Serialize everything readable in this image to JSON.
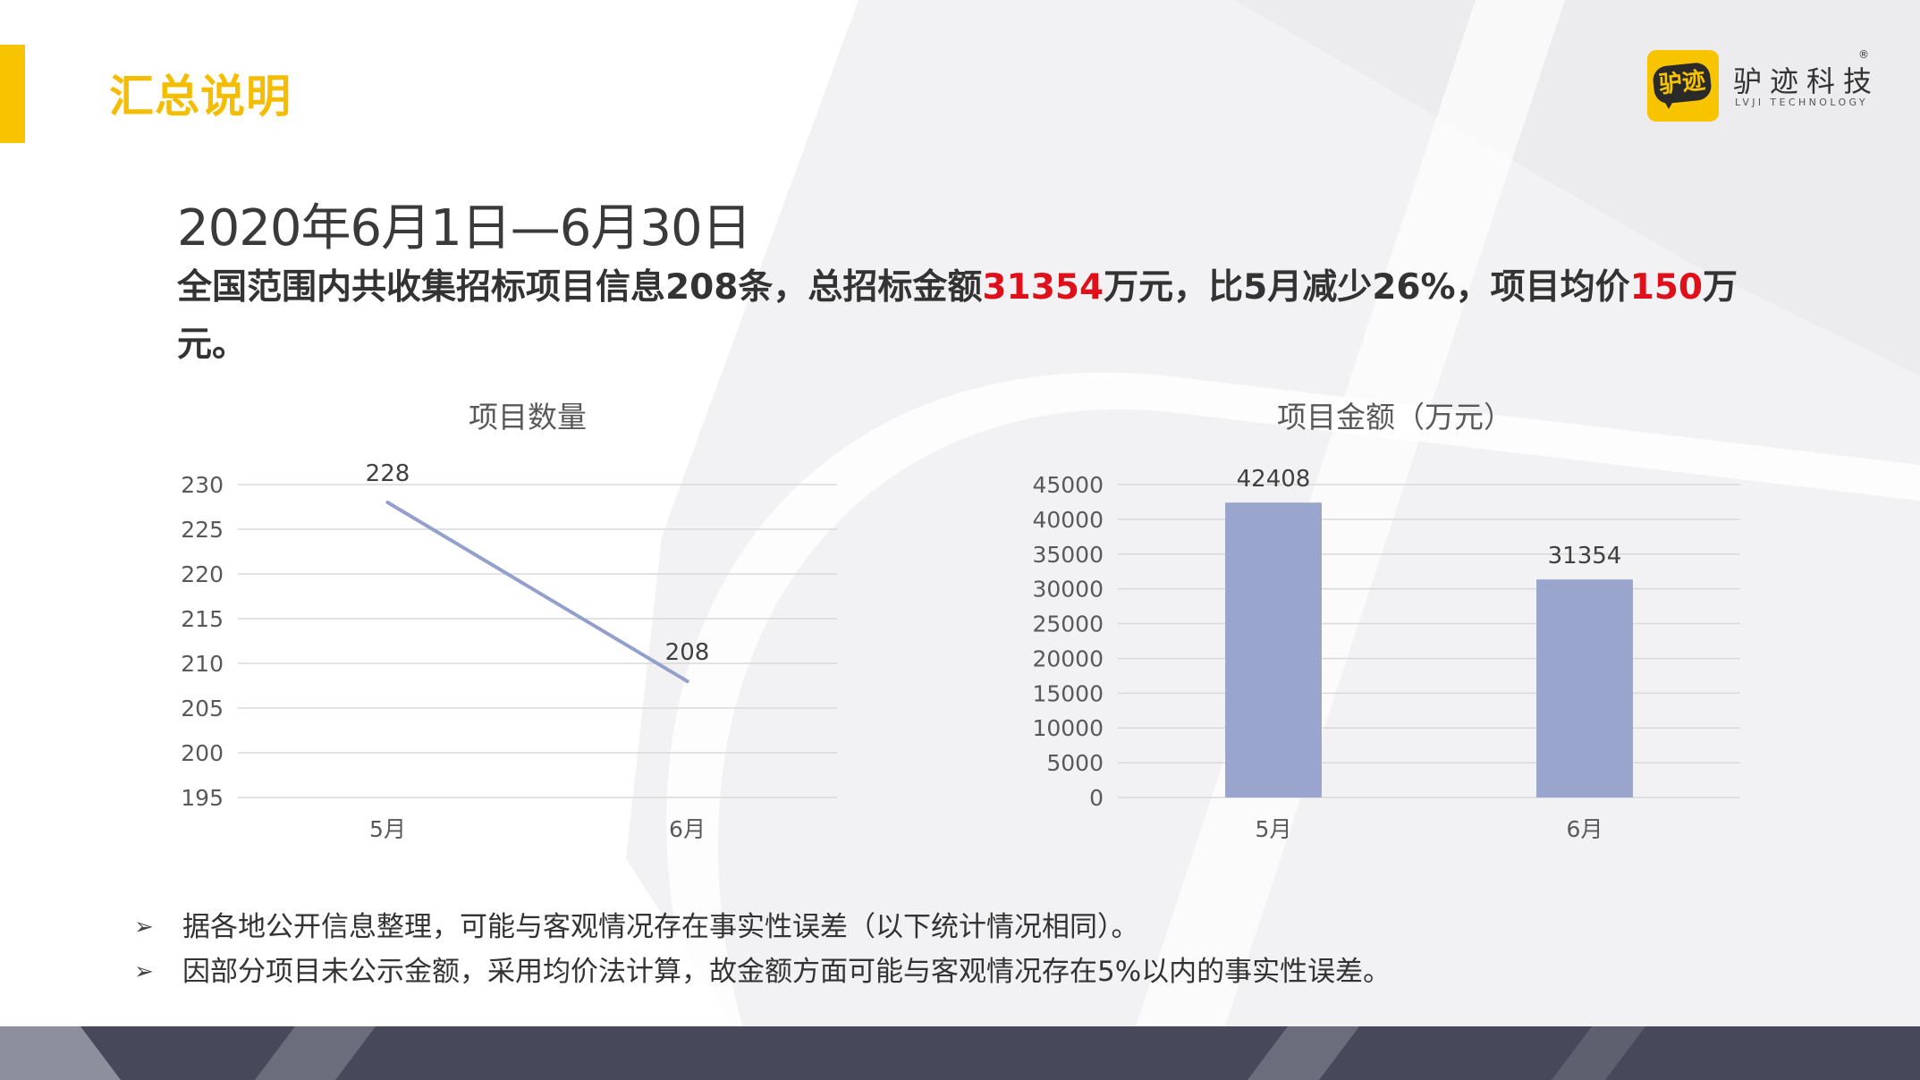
{
  "slide": {
    "title": "汇总说明",
    "accent_color": "#F8C400",
    "title_color": "#F4BD00",
    "highlight_color": "#E0101A"
  },
  "logo": {
    "badge_text": "驴迹",
    "name": "驴迹科技",
    "subtitle": "LVJI TECHNOLOGY",
    "registered_mark": "®"
  },
  "heading": {
    "date_range": "2020年6月1日—6月30日"
  },
  "summary": {
    "part1": "全国范围内共收集招标项目信息208条，总招标金额",
    "amount": "31354",
    "part2": "万元，比5月减少26%，项目均价",
    "avg_price": "150",
    "part3": "万元。"
  },
  "chart_data": [
    {
      "type": "line",
      "title": "项目数量",
      "categories": [
        "5月",
        "6月"
      ],
      "series": [
        {
          "values": [
            228,
            208
          ]
        }
      ],
      "data_labels": [
        "228",
        "208"
      ],
      "y_ticks": [
        "195",
        "200",
        "205",
        "210",
        "215",
        "220",
        "225",
        "230"
      ],
      "ylim": [
        195,
        230
      ],
      "grid": true,
      "legend": "none",
      "color": "#94A0CC"
    },
    {
      "type": "bar",
      "title": "项目金额（万元）",
      "categories": [
        "5月",
        "6月"
      ],
      "series": [
        {
          "values": [
            42408,
            31354
          ]
        }
      ],
      "data_labels": [
        "42408",
        "31354"
      ],
      "y_ticks": [
        "0",
        "5000",
        "10000",
        "15000",
        "20000",
        "25000",
        "30000",
        "35000",
        "40000",
        "45000"
      ],
      "ylim": [
        0,
        45000
      ],
      "grid": true,
      "legend": "none",
      "color": "#9AA5CE"
    }
  ],
  "notes": [
    {
      "bullet": "➢",
      "text": "据各地公开信息整理，可能与客观情况存在事实性误差（以下统计情况相同）。"
    },
    {
      "bullet": "➢",
      "text": "因部分项目未公示金额，采用均价法计算，故金额方面可能与客观情况存在5%以内的事实性误差。"
    }
  ]
}
